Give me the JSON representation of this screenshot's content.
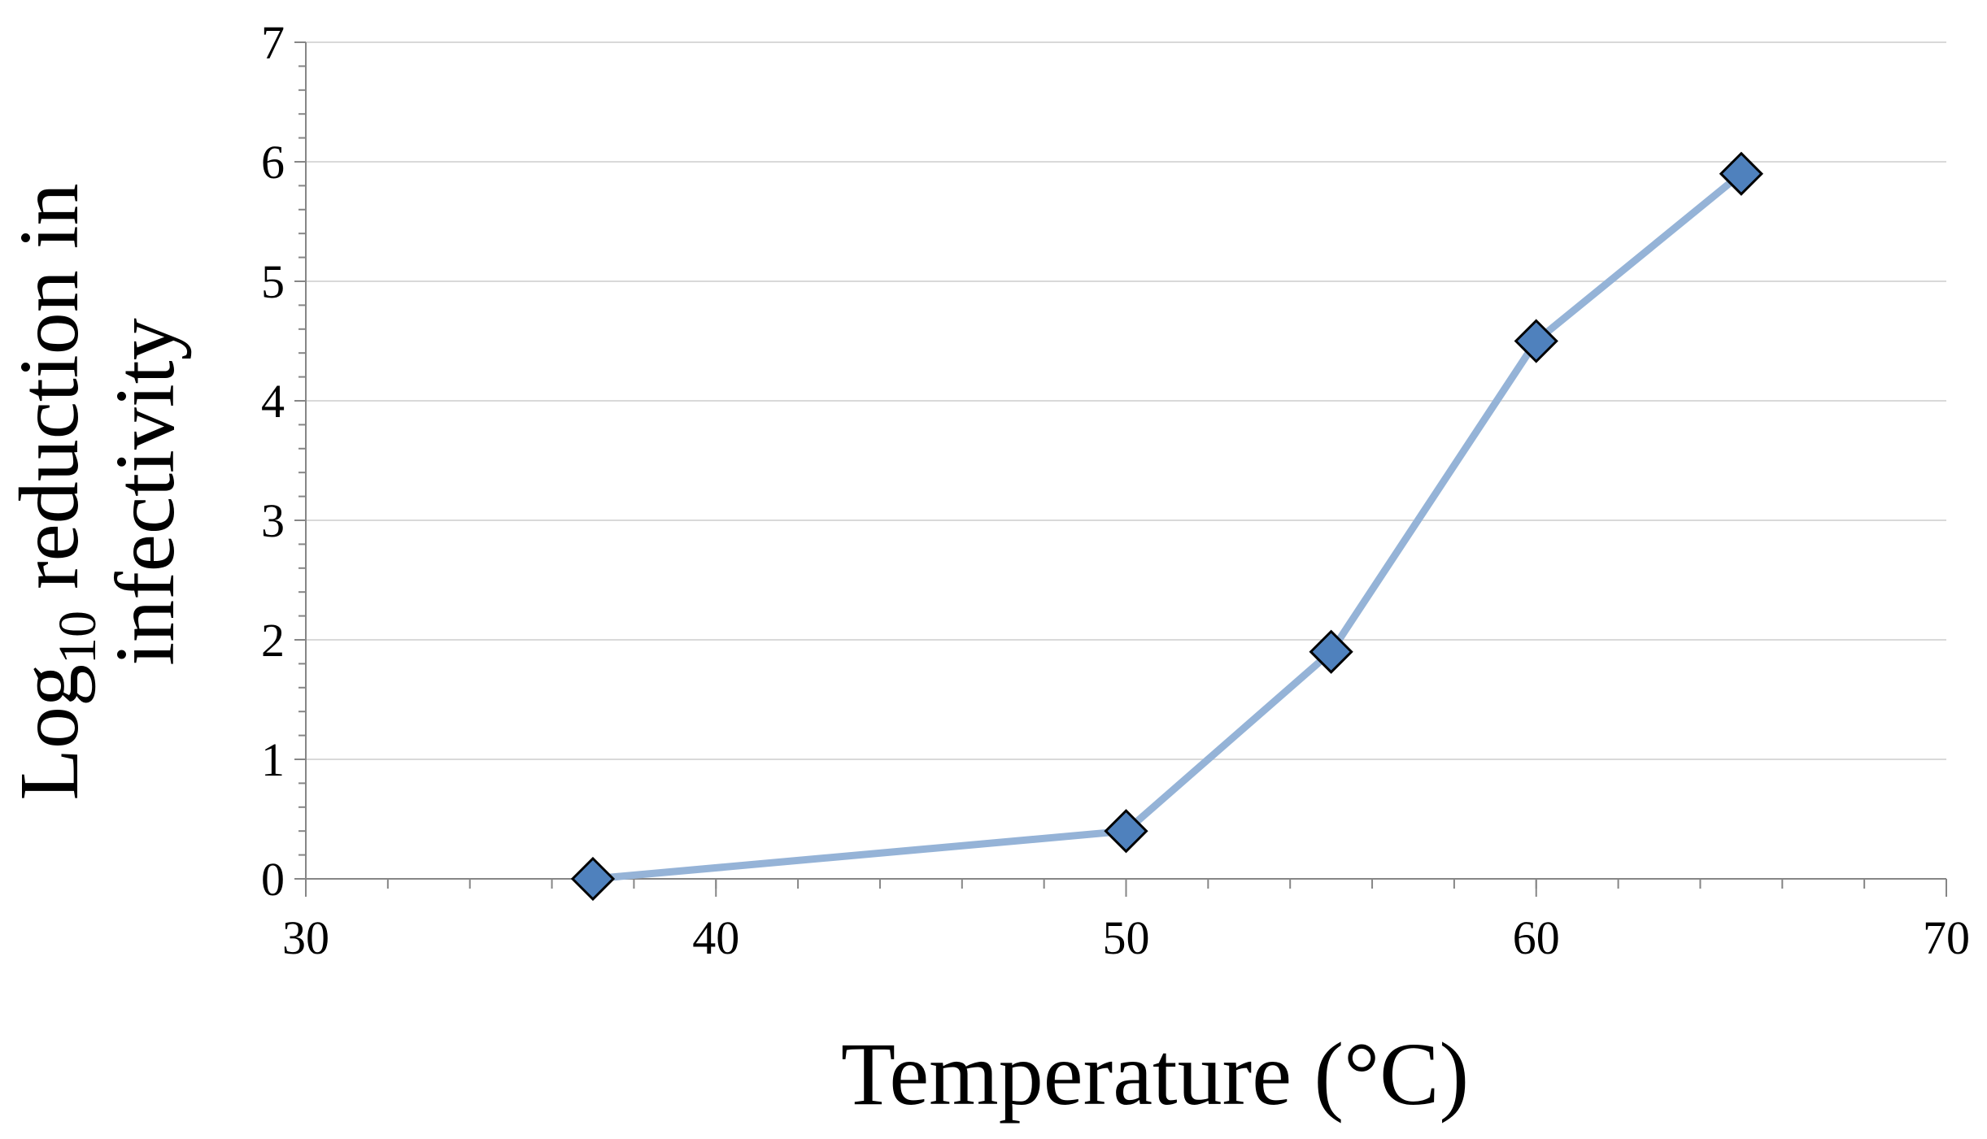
{
  "chart_data": {
    "type": "line",
    "title": "",
    "xlabel": "Temperature (°C)",
    "ylabel": {
      "line1_prefix": "Log",
      "line1_subscript": "10",
      "line1_suffix": " reduction in",
      "line2": "infectivity"
    },
    "xlim": [
      30,
      70
    ],
    "ylim": [
      0,
      7
    ],
    "x_ticks": [
      "30",
      "40",
      "50",
      "60",
      "70"
    ],
    "y_ticks": [
      "0",
      "1",
      "2",
      "3",
      "4",
      "5",
      "6",
      "7"
    ],
    "grid": true,
    "legend": "none",
    "series": [
      {
        "name": "Log10 reduction in infectivity",
        "x": [
          37,
          50,
          55,
          60,
          65
        ],
        "y": [
          0,
          0.4,
          1.9,
          4.5,
          5.9
        ]
      }
    ]
  },
  "colors": {
    "line": "#95B3D7",
    "marker_fill": "#4F81BD",
    "marker_stroke": "#000000",
    "grid": "#D9D9D9",
    "axis": "#868686"
  }
}
